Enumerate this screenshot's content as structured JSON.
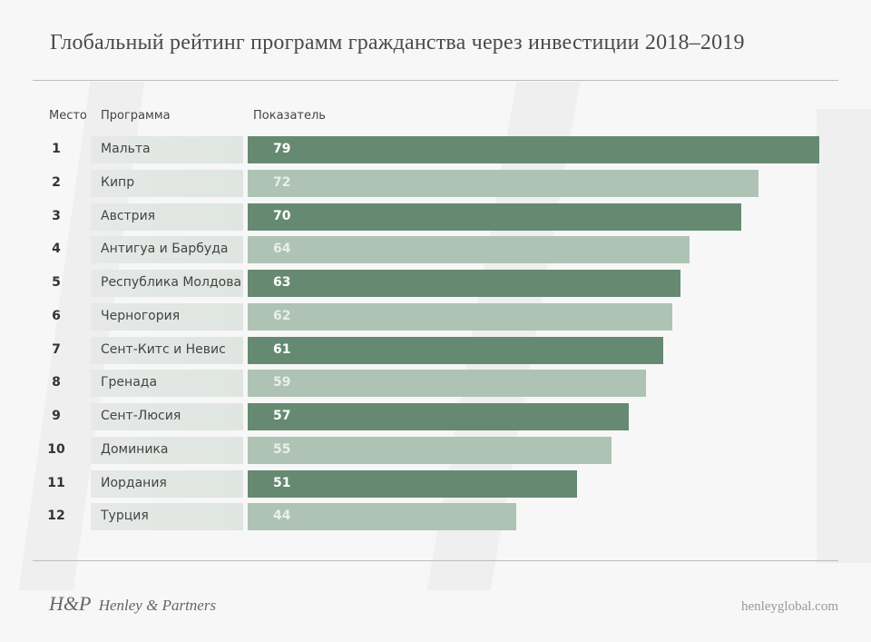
{
  "title": "Глобальный рейтинг программ гражданства через инвестиции 2018–2019",
  "headers": {
    "rank": "Место",
    "program": "Программа",
    "score": "Показатель"
  },
  "footer": {
    "logo_mark": "H&P",
    "logo_text": "Henley & Partners",
    "url": "henleyglobal.com"
  },
  "colors": {
    "dark_bar": "#658a71",
    "light_bar": "#aec3b4"
  },
  "chart_data": {
    "type": "bar",
    "orientation": "horizontal",
    "title": "Глобальный рейтинг программ гражданства через инвестиции 2018–2019",
    "xlabel": "Показатель",
    "ylabel": "Программа",
    "categories": [
      "Мальта",
      "Кипр",
      "Австрия",
      "Антигуа и Барбуда",
      "Республика Молдова",
      "Черногория",
      "Сент-Китс и Невис",
      "Гренада",
      "Сент-Люсия",
      "Доминика",
      "Иордания",
      "Турция"
    ],
    "ranks": [
      1,
      2,
      3,
      4,
      5,
      6,
      7,
      8,
      9,
      10,
      11,
      12
    ],
    "values": [
      79,
      72,
      70,
      64,
      63,
      62,
      61,
      59,
      57,
      55,
      51,
      44
    ],
    "shades": [
      "dark",
      "light",
      "dark",
      "light",
      "dark",
      "light",
      "dark",
      "light",
      "dark",
      "light",
      "dark",
      "light"
    ],
    "xlim": [
      13,
      79
    ],
    "grid": false,
    "legend": "none"
  }
}
